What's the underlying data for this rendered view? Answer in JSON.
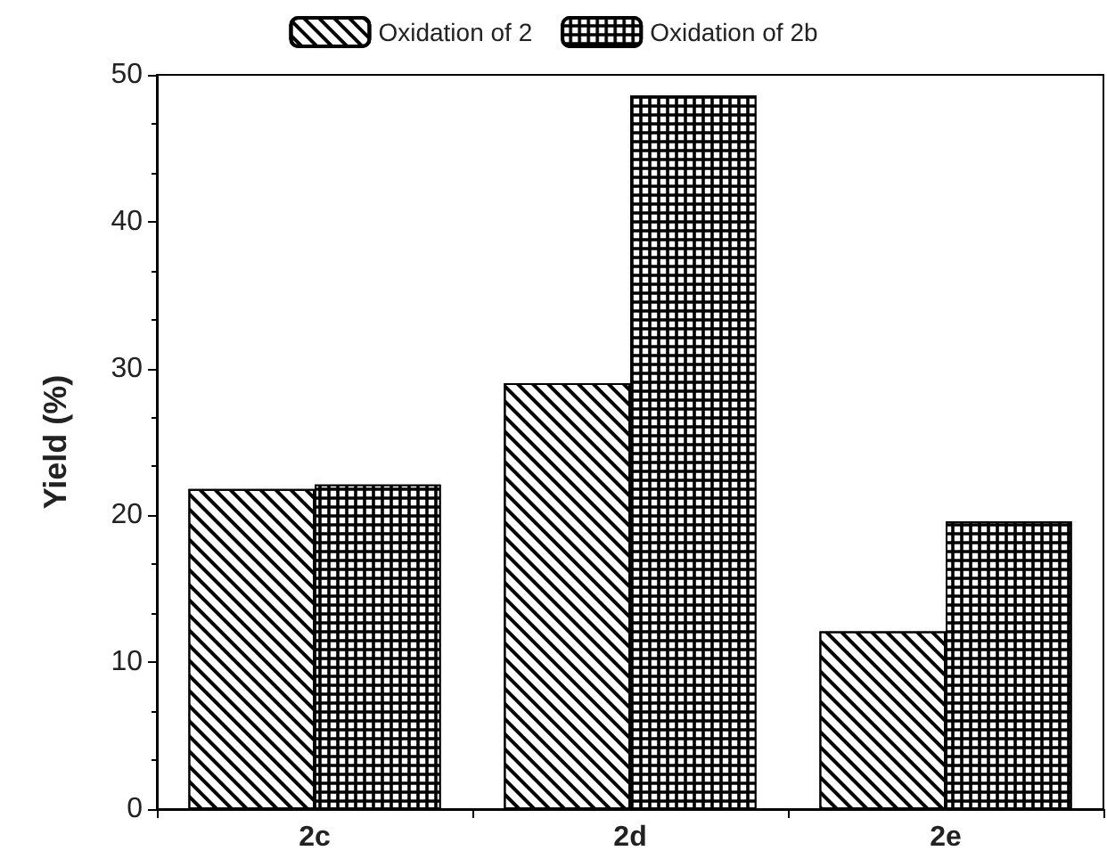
{
  "chart_data": {
    "type": "bar",
    "ylabel": "Yield (%)",
    "categories": [
      "2c",
      "2d",
      "2e"
    ],
    "series": [
      {
        "name": "Oxidation of 2",
        "color": "#000000",
        "values": [
          21.8,
          29.0,
          12.1
        ]
      },
      {
        "name": "Oxidation of 2b",
        "color": "#000000",
        "values": [
          22.1,
          48.6,
          19.6
        ]
      }
    ],
    "ylim": [
      0,
      50
    ],
    "yticks": [
      0,
      10,
      20,
      30,
      40,
      50
    ],
    "grid": false,
    "legend": "top"
  }
}
